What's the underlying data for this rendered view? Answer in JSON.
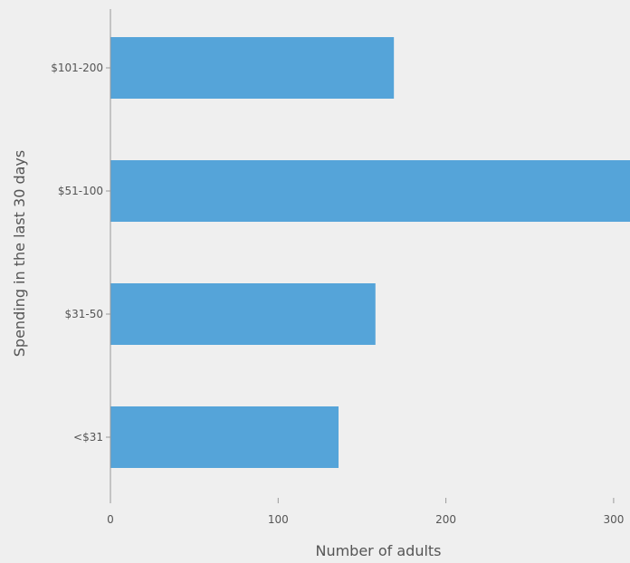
{
  "chart_data": {
    "type": "bar",
    "orientation": "horizontal",
    "title": "",
    "xlabel": "Number of adults",
    "ylabel": "Spending in the last 30 days",
    "categories": [
      "$101-200",
      "$51-100",
      "$31-50",
      "<$31"
    ],
    "values": [
      169,
      325,
      158,
      136
    ],
    "xlim": [
      0,
      310
    ],
    "xticks": [
      0,
      100,
      200,
      300
    ],
    "grid": false,
    "bar_color": "#55a4d9",
    "axis_color": "#999999",
    "text_color": "#555555"
  }
}
